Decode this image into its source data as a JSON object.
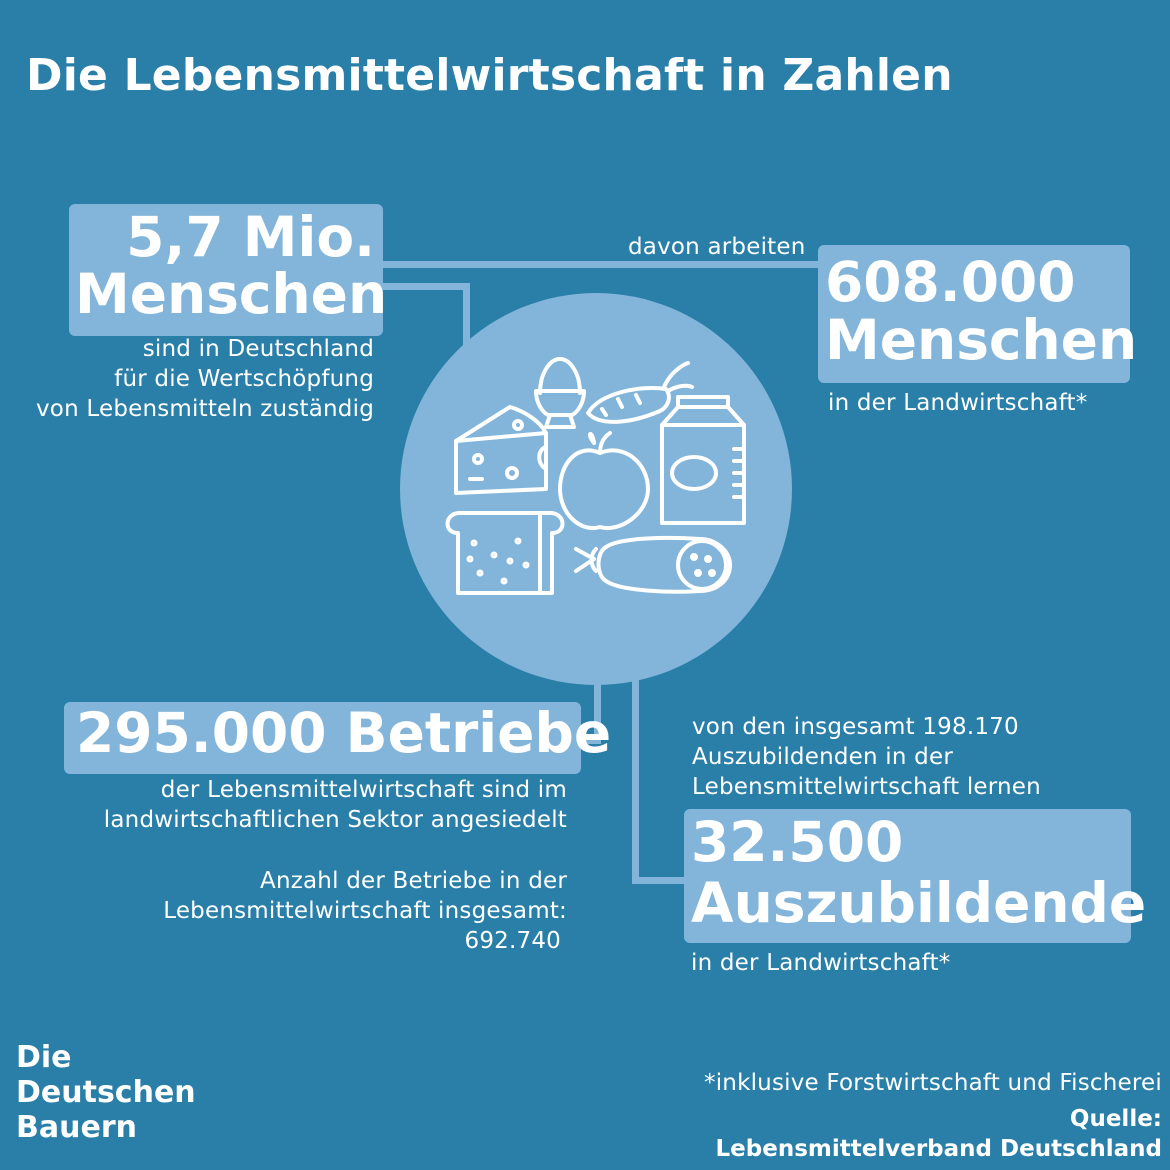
{
  "title": "Die Lebensmittelwirtschaft in Zahlen",
  "stat_people": {
    "line1": "5,7 Mio.",
    "line2": "Menschen",
    "caption": [
      "sind in Deutschland",
      "für die Wertschöpfung",
      "von Lebensmitteln zuständig"
    ]
  },
  "connector_label": "davon arbeiten",
  "stat_agri_people": {
    "line1": "608.000",
    "line2": "Menschen",
    "caption": "in der Landwirtschaft*"
  },
  "stat_businesses": {
    "line1": "295.000 Betriebe",
    "caption": [
      "der Lebensmittelwirtschaft sind im",
      "landwirtschaftlichen Sektor angesiedelt"
    ],
    "total": [
      "Anzahl der Betriebe in der",
      "Lebensmittelwirtschaft insgesamt:",
      "692.740"
    ]
  },
  "stat_trainees": {
    "intro": [
      "von den insgesamt 198.170",
      "Auszubildenden in der",
      "Lebensmittelwirtschaft lernen"
    ],
    "line1": "32.500",
    "line2": "Auszubildende",
    "caption": "in der Landwirtschaft*"
  },
  "footnote": "*inklusive Forstwirtschaft und Fischerei",
  "source": {
    "label": "Quelle:",
    "name": "Lebensmittelverband Deutschland"
  },
  "logo": [
    "Die",
    "Deutschen",
    "Bauern"
  ],
  "icons": [
    "egg-icon",
    "carrot-icon",
    "cheese-icon",
    "apple-icon",
    "milk-carton-icon",
    "bread-icon",
    "sausage-icon"
  ],
  "colors": {
    "background": "#2a7fa9",
    "accent": "#82b5d9",
    "text": "#ffffff"
  }
}
